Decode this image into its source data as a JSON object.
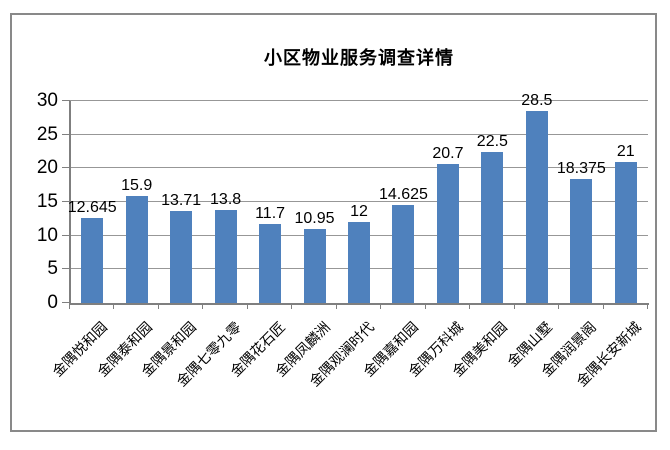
{
  "chart_data": {
    "type": "bar",
    "title": "小区物业服务调查详情",
    "categories": [
      "金隅悦和园",
      "金隅泰和园",
      "金隅景和园",
      "金隅七零九零",
      "金隅花石匠",
      "金隅凤麟洲",
      "金隅观澜时代",
      "金隅嘉和园",
      "金隅万科城",
      "金隅美和园",
      "金隅山墅",
      "金隅润景阁",
      "金隅长安新城"
    ],
    "values": [
      12.645,
      15.9,
      13.71,
      13.8,
      11.7,
      10.95,
      12,
      14.625,
      20.7,
      22.5,
      28.5,
      18.375,
      21
    ],
    "data_labels": [
      "12.645",
      "15.9",
      "13.71",
      "13.8",
      "11.7",
      "10.95",
      "12",
      "14.625",
      "20.7",
      "22.5",
      "28.5",
      "18.375",
      "21"
    ],
    "y_ticks": [
      0,
      5,
      10,
      15,
      20,
      25,
      30
    ],
    "ylim": [
      0,
      30
    ],
    "xlabel": "",
    "ylabel": "",
    "grid": true,
    "legend_position": "none",
    "bar_color": "#4F81BD",
    "gridline_color": "#979797",
    "axis_color": "#7f7f7f",
    "frame_border_color": "#898989",
    "text_color": "#000000",
    "background_color": "#ffffff"
  }
}
